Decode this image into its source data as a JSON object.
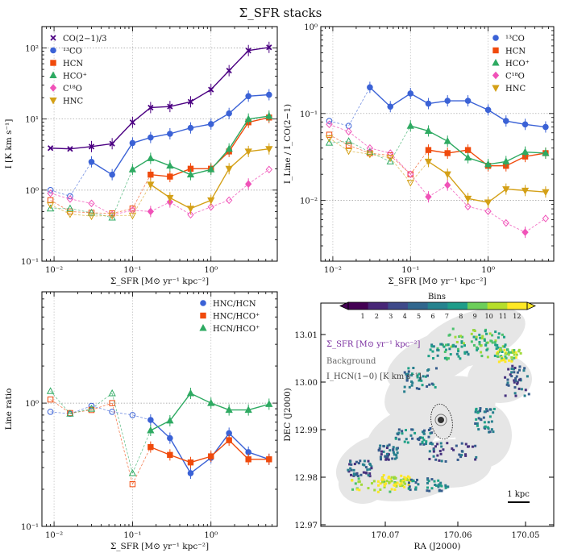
{
  "title": "Σ_SFR stacks",
  "colors": {
    "co": "#4b0082",
    "c13": "#3b62d6",
    "hcn": "#f04a0c",
    "hcop": "#2eaa62",
    "c18o": "#f052b8",
    "hnc": "#d4a017"
  },
  "chart_data": [
    {
      "type": "line",
      "panel": "intensity",
      "log_x": true,
      "log_y": true,
      "xlim": [
        0.007,
        7
      ],
      "ylim": [
        0.1,
        200
      ],
      "xlabel": "Σ_SFR [M⊙ yr⁻¹ kpc⁻²]",
      "ylabel": "I [K km s⁻¹]",
      "xticks": [
        "10⁻²",
        "10⁻¹",
        "10⁰"
      ],
      "yticks": [
        "10⁻¹",
        "10⁰",
        "10¹",
        "10²"
      ],
      "legend_position": "top-left",
      "series": [
        {
          "name": "CO(2−1)/3",
          "key": "co",
          "marker": "x",
          "x": [
            0.009,
            0.016,
            0.03,
            0.055,
            0.1,
            0.17,
            0.3,
            0.55,
            1.0,
            1.7,
            3.0,
            5.5
          ],
          "y": [
            3.9,
            3.8,
            4.1,
            4.5,
            9.0,
            14.5,
            15.0,
            17.5,
            26,
            48,
            92,
            102
          ]
        },
        {
          "name": "¹³CO",
          "key": "c13",
          "marker": "o",
          "x": [
            0.009,
            0.016,
            0.03,
            0.055,
            0.1,
            0.17,
            0.3,
            0.55,
            1.0,
            1.7,
            3.0,
            5.5
          ],
          "y": [
            1.0,
            0.82,
            2.5,
            1.65,
            4.6,
            5.5,
            6.2,
            7.5,
            8.5,
            12,
            21,
            22
          ],
          "open_to_index": 2
        },
        {
          "name": "HCN",
          "key": "hcn",
          "marker": "s",
          "x": [
            0.009,
            0.016,
            0.03,
            0.055,
            0.1,
            0.17,
            0.3,
            0.55,
            1.0,
            1.7,
            3.0,
            5.5
          ],
          "y": [
            0.72,
            0.5,
            0.48,
            0.47,
            0.55,
            1.65,
            1.55,
            2.0,
            2.0,
            3.5,
            9.0,
            10.5
          ],
          "open_to_index": 5
        },
        {
          "name": "HCO⁺",
          "key": "hcop",
          "marker": "^",
          "x": [
            0.009,
            0.016,
            0.03,
            0.055,
            0.1,
            0.17,
            0.3,
            0.55,
            1.0,
            1.7,
            3.0,
            5.5
          ],
          "y": [
            0.55,
            0.55,
            0.48,
            0.41,
            1.95,
            2.8,
            2.2,
            1.65,
            1.95,
            3.8,
            10.0,
            11.0
          ],
          "open_to_index": 4
        },
        {
          "name": "C¹⁸O",
          "key": "c18o",
          "marker": "D",
          "x": [
            0.009,
            0.016,
            0.03,
            0.055,
            0.1,
            0.17,
            0.3,
            0.55,
            1.0,
            1.7,
            3.0,
            5.5
          ],
          "y": [
            0.9,
            0.75,
            0.65,
            0.45,
            0.52,
            0.5,
            0.68,
            0.45,
            0.58,
            0.72,
            1.22,
            1.95
          ],
          "closed_indices": [
            5,
            6,
            10
          ]
        },
        {
          "name": "HNC",
          "key": "hnc",
          "marker": "v",
          "x": [
            0.009,
            0.016,
            0.03,
            0.055,
            0.1,
            0.17,
            0.3,
            0.55,
            1.0,
            1.7,
            3.0,
            5.5
          ],
          "y": [
            0.62,
            0.46,
            0.43,
            0.44,
            0.44,
            1.2,
            0.78,
            0.55,
            0.72,
            2.0,
            3.5,
            3.8
          ],
          "open_to_index": 5
        }
      ]
    },
    {
      "type": "line",
      "panel": "line-over-co",
      "log_x": true,
      "log_y": true,
      "xlim": [
        0.007,
        7
      ],
      "ylim": [
        0.002,
        1
      ],
      "xlabel": "Σ_SFR [M⊙ yr⁻¹ kpc⁻²]",
      "ylabel": "I_Line / I_CO(2−1)",
      "xticks": [
        "10⁻²",
        "10⁻¹",
        "10⁰"
      ],
      "yticks": [
        "10⁻²",
        "10⁻¹",
        "10⁰"
      ],
      "legend_position": "top-right",
      "series": [
        {
          "name": "¹³CO",
          "key": "c13",
          "marker": "o",
          "x": [
            0.009,
            0.016,
            0.03,
            0.055,
            0.1,
            0.17,
            0.3,
            0.55,
            1.0,
            1.7,
            3.0,
            5.5
          ],
          "y": [
            0.082,
            0.072,
            0.2,
            0.12,
            0.17,
            0.13,
            0.14,
            0.14,
            0.11,
            0.082,
            0.075,
            0.07
          ],
          "open_to_index": 2
        },
        {
          "name": "HCN",
          "key": "hcn",
          "marker": "s",
          "x": [
            0.009,
            0.016,
            0.03,
            0.055,
            0.1,
            0.17,
            0.3,
            0.55,
            1.0,
            1.7,
            3.0,
            5.5
          ],
          "y": [
            0.057,
            0.043,
            0.035,
            0.033,
            0.02,
            0.038,
            0.035,
            0.038,
            0.025,
            0.025,
            0.032,
            0.035
          ],
          "open_to_index": 5
        },
        {
          "name": "HCO⁺",
          "key": "hcop",
          "marker": "^",
          "x": [
            0.009,
            0.016,
            0.03,
            0.055,
            0.1,
            0.17,
            0.3,
            0.55,
            1.0,
            1.7,
            3.0,
            5.5
          ],
          "y": [
            0.046,
            0.048,
            0.036,
            0.028,
            0.072,
            0.063,
            0.048,
            0.031,
            0.026,
            0.028,
            0.036,
            0.035
          ],
          "open_to_index": 4
        },
        {
          "name": "C¹⁸O",
          "key": "c18o",
          "marker": "D",
          "x": [
            0.009,
            0.016,
            0.03,
            0.055,
            0.1,
            0.17,
            0.3,
            0.55,
            1.0,
            1.7,
            3.0,
            5.5
          ],
          "y": [
            0.075,
            0.062,
            0.04,
            0.035,
            0.02,
            0.011,
            0.015,
            0.0085,
            0.0075,
            0.0055,
            0.0043,
            0.0062
          ],
          "closed_indices": [
            5,
            6,
            10
          ]
        },
        {
          "name": "HNC",
          "key": "hnc",
          "marker": "v",
          "x": [
            0.009,
            0.016,
            0.03,
            0.055,
            0.1,
            0.17,
            0.3,
            0.55,
            1.0,
            1.7,
            3.0,
            5.5
          ],
          "y": [
            0.052,
            0.037,
            0.034,
            0.031,
            0.016,
            0.028,
            0.02,
            0.0105,
            0.0095,
            0.0135,
            0.013,
            0.0125
          ],
          "open_to_index": 5
        }
      ]
    },
    {
      "type": "line",
      "panel": "line-ratio",
      "log_x": true,
      "log_y": true,
      "xlim": [
        0.007,
        7
      ],
      "ylim": [
        0.1,
        8
      ],
      "xlabel": "Σ_SFR [M⊙ yr⁻¹ kpc⁻²]",
      "ylabel": "Line ratio",
      "xticks": [
        "10⁻²",
        "10⁻¹",
        "10⁰"
      ],
      "yticks": [
        "10⁻¹",
        "10⁰"
      ],
      "legend_position": "top-right",
      "series": [
        {
          "name": "HNC/HCN",
          "key": "c13",
          "marker": "o",
          "x": [
            0.009,
            0.016,
            0.03,
            0.055,
            0.1,
            0.17,
            0.3,
            0.55,
            1.0,
            1.7,
            3.0,
            5.5
          ],
          "y": [
            0.85,
            0.82,
            0.95,
            0.85,
            0.8,
            0.73,
            0.52,
            0.27,
            0.36,
            0.57,
            0.4,
            0.35
          ],
          "open_to_index": 5
        },
        {
          "name": "HNC/HCO⁺",
          "key": "hcn",
          "marker": "s",
          "x": [
            0.009,
            0.016,
            0.03,
            0.055,
            0.1,
            0.17,
            0.3,
            0.55,
            1.0,
            1.7,
            3.0,
            5.5
          ],
          "y": [
            1.07,
            0.83,
            0.88,
            1.0,
            0.22,
            0.44,
            0.38,
            0.33,
            0.37,
            0.5,
            0.35,
            0.35
          ],
          "open_to_index": 5
        },
        {
          "name": "HCN/HCO⁺",
          "key": "hcop",
          "marker": "^",
          "x": [
            0.009,
            0.016,
            0.03,
            0.055,
            0.1,
            0.17,
            0.3,
            0.55,
            1.0,
            1.7,
            3.0,
            5.5
          ],
          "y": [
            1.25,
            0.82,
            0.9,
            1.2,
            0.27,
            0.6,
            0.72,
            1.2,
            1.0,
            0.88,
            0.88,
            0.98
          ],
          "open_to_index": 5
        }
      ]
    },
    {
      "type": "heatmap",
      "panel": "bin-map",
      "xlabel": "RA (J2000)",
      "ylabel": "DEC (J2000)",
      "xticks": [
        "170.07",
        "170.06",
        "170.05"
      ],
      "yticks": [
        "13.01",
        "13.00",
        "12.99",
        "12.98",
        "12.97"
      ],
      "colorbar_label": "Bins",
      "colorbar_ticks": [
        "1",
        "2",
        "3",
        "4",
        "5",
        "6",
        "7",
        "8",
        "9",
        "10",
        "11",
        "12"
      ],
      "annotations": [
        "Σ_SFR [M⊙ yr⁻¹ kpc⁻²]",
        "Background",
        "I_HCN(1−0) [K km s⁻¹]"
      ],
      "scalebar": "1 kpc"
    }
  ]
}
